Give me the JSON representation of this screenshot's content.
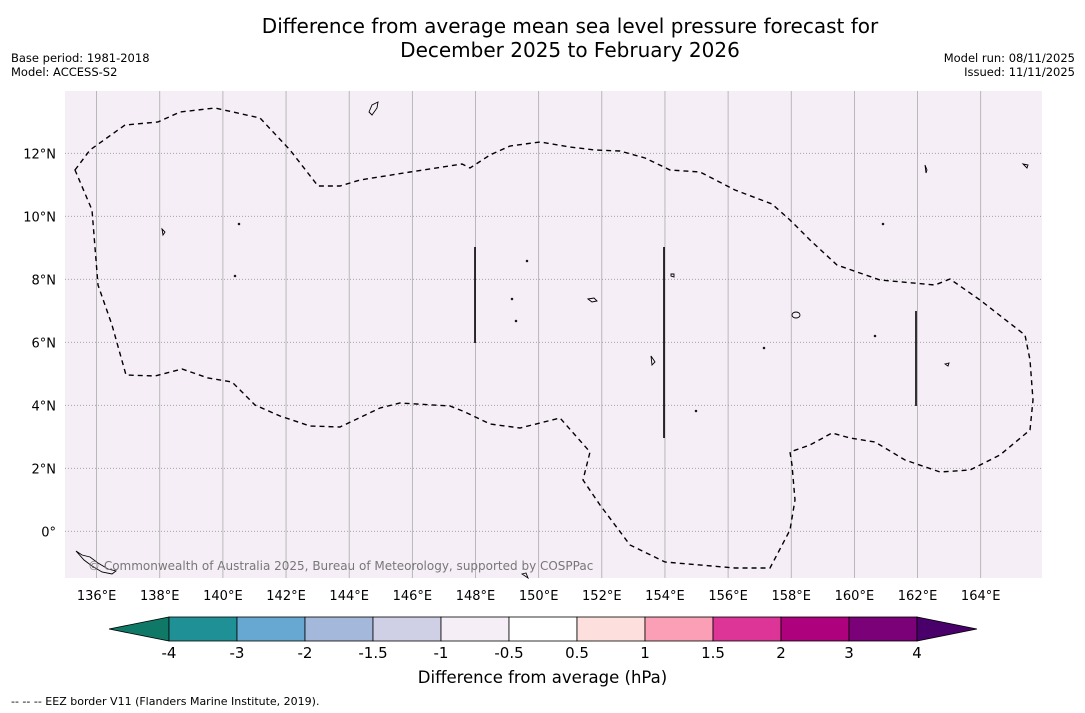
{
  "title": {
    "line1": "Difference from average mean sea level pressure forecast for",
    "line2": "December 2025 to February 2026"
  },
  "meta": {
    "base_period": "Base period: 1981-2018",
    "model": "Model: ACCESS-S2",
    "model_run": "Model run: 08/11/2025",
    "issued": "Issued: 11/11/2025"
  },
  "map": {
    "background_color": "#f5eef6",
    "lon_labels": [
      "136°E",
      "138°E",
      "140°E",
      "142°E",
      "144°E",
      "146°E",
      "148°E",
      "150°E",
      "152°E",
      "154°E",
      "156°E",
      "158°E",
      "160°E",
      "162°E",
      "164°E"
    ],
    "lat_labels": [
      "12°N",
      "10°N",
      "8°N",
      "6°N",
      "4°N",
      "2°N",
      "0°"
    ],
    "copyright": "© Commonwealth of Australia 2025, Bureau of Meteorology, supported by COSPPac"
  },
  "colorbar": {
    "title": "Difference from average (hPa)",
    "ticks": [
      "-4",
      "-3",
      "-2",
      "-1.5",
      "-1",
      "-0.5",
      "0.5",
      "1",
      "1.5",
      "2",
      "3",
      "4"
    ],
    "colors": [
      "#1f9196",
      "#67a8d2",
      "#a4b8dc",
      "#cfcfe5",
      "#f6eef6",
      "#ffffff",
      "#fde0dd",
      "#fa9fb5",
      "#dd3497",
      "#ae017e",
      "#7a0177"
    ],
    "extend_low_color": "#0f7866",
    "extend_high_color": "#49006a"
  },
  "footer": "--  --  -- EEZ border V11 (Flanders Marine Institute, 2019)."
}
